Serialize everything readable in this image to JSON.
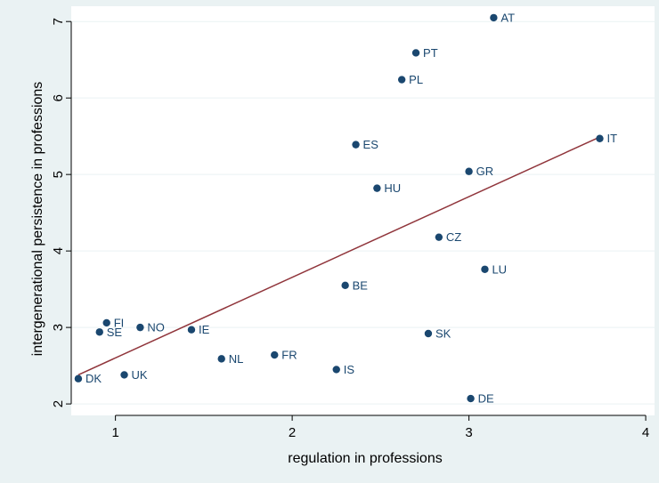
{
  "colors": {
    "outer_background": "#eaf2f3",
    "plot_background": "#ffffff",
    "gridline": "#eaf2f3",
    "marker": "#1a476f",
    "fit_line": "#90353b"
  },
  "chart_data": {
    "type": "scatter",
    "title": "",
    "xlabel": "regulation in professions",
    "ylabel": "intergenerational persistence in professions",
    "xlim": [
      0.75,
      4.05
    ],
    "ylim": [
      1.85,
      7.2
    ],
    "xticks": [
      1,
      2,
      3,
      4
    ],
    "yticks": [
      2,
      3,
      4,
      5,
      6,
      7
    ],
    "grid": "horizontal",
    "legend": "none",
    "points": [
      {
        "label": "DK",
        "x": 0.79,
        "y": 2.33
      },
      {
        "label": "UK",
        "x": 1.05,
        "y": 2.38
      },
      {
        "label": "SE",
        "x": 0.91,
        "y": 2.94
      },
      {
        "label": "FI",
        "x": 0.95,
        "y": 3.06
      },
      {
        "label": "NO",
        "x": 1.14,
        "y": 3.0
      },
      {
        "label": "IE",
        "x": 1.43,
        "y": 2.97
      },
      {
        "label": "NL",
        "x": 1.6,
        "y": 2.59
      },
      {
        "label": "FR",
        "x": 1.9,
        "y": 2.64
      },
      {
        "label": "IS",
        "x": 2.25,
        "y": 2.45
      },
      {
        "label": "BE",
        "x": 2.3,
        "y": 3.55
      },
      {
        "label": "ES",
        "x": 2.36,
        "y": 5.39
      },
      {
        "label": "HU",
        "x": 2.48,
        "y": 4.82
      },
      {
        "label": "PL",
        "x": 2.62,
        "y": 6.24
      },
      {
        "label": "PT",
        "x": 2.7,
        "y": 6.59
      },
      {
        "label": "SK",
        "x": 2.77,
        "y": 2.92
      },
      {
        "label": "CZ",
        "x": 2.83,
        "y": 4.18
      },
      {
        "label": "GR",
        "x": 3.0,
        "y": 5.04
      },
      {
        "label": "DE",
        "x": 3.01,
        "y": 2.07
      },
      {
        "label": "LU",
        "x": 3.09,
        "y": 3.76
      },
      {
        "label": "AT",
        "x": 3.14,
        "y": 7.05
      },
      {
        "label": "IT",
        "x": 3.74,
        "y": 5.47
      }
    ],
    "fit_line": {
      "x": [
        0.79,
        3.74
      ],
      "y": [
        2.38,
        5.49
      ]
    }
  }
}
